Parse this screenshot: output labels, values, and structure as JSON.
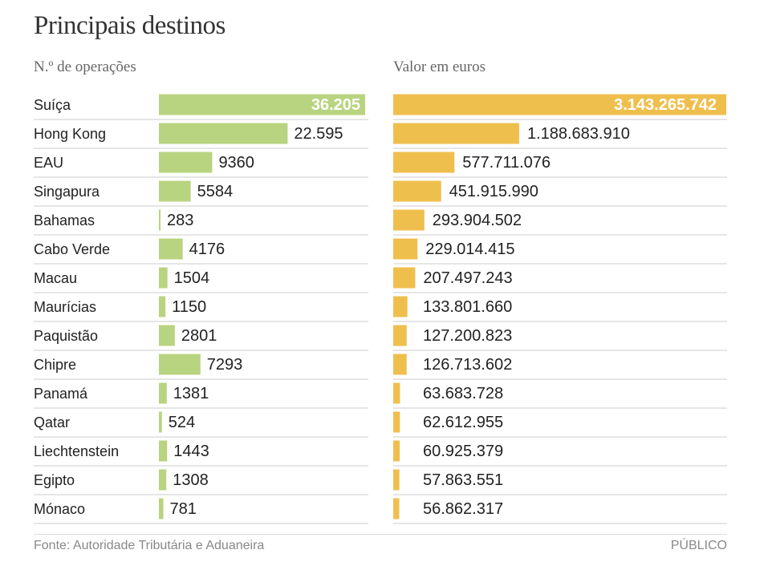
{
  "title": "Principais destinos",
  "left_header": "N.º de operações",
  "right_header": "Valor em euros",
  "source": "Fonte: Autoridade Tributária e Aduaneira",
  "brand": "PÚBLICO",
  "colors": {
    "green": "#b8d480",
    "gold": "#efbf4e",
    "divider": "#cccccc"
  },
  "chart_data": {
    "type": "bar",
    "orientation": "horizontal",
    "title": "Principais destinos",
    "categories": [
      "Suíça",
      "Hong Kong",
      "EAU",
      "Singapura",
      "Bahamas",
      "Cabo Verde",
      "Macau",
      "Maurícias",
      "Paquistão",
      "Chipre",
      "Panamá",
      "Qatar",
      "Liechtenstein",
      "Egipto",
      "Mónaco"
    ],
    "series": [
      {
        "name": "N.º de operações",
        "values": [
          36205,
          22595,
          9360,
          5584,
          283,
          4176,
          1504,
          1150,
          2801,
          7293,
          1381,
          524,
          1443,
          1308,
          781
        ],
        "labels": [
          "36.205",
          "22.595",
          "9360",
          "5584",
          "283",
          "4176",
          "1504",
          "1150",
          "2801",
          "7293",
          "1381",
          "524",
          "1443",
          "1308",
          "781"
        ]
      },
      {
        "name": "Valor em euros",
        "values": [
          3143265742,
          1188683910,
          577711076,
          451915990,
          293904502,
          229014415,
          207497243,
          133801660,
          127200823,
          126713602,
          63683728,
          62612955,
          60925379,
          57863551,
          56862317
        ],
        "labels": [
          "3.143.265.742",
          "1.188.683.910",
          "577.711.076",
          "451.915.990",
          "293.904.502",
          "229.014.415",
          "207.497.243",
          "133.801.660",
          "127.200.823",
          "126.713.602",
          "63.683.728",
          "62.612.955",
          "60.925.379",
          "57.863.551",
          "56.862.317"
        ]
      }
    ]
  }
}
